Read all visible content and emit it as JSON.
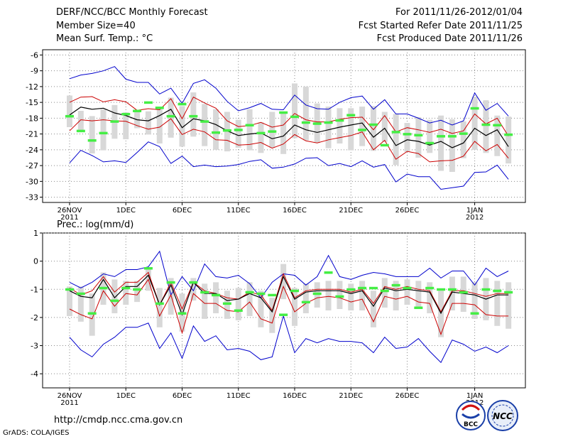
{
  "header": {
    "title": "DERF/NCC/BCC Monthly Forecast",
    "member_size": "Member Size=40",
    "variable_top": "Mean Surf. Temp.: °C",
    "forecast_range": "For 2011/11/26-2012/01/04",
    "started": "Fcst Started Refer Date 2011/11/25",
    "produced": "Fcst Produced Date 2011/11/26"
  },
  "footer": {
    "url": "http://cmdp.ncc.cma.gov.cn",
    "grads": "GrADS: COLA/IGES",
    "logo1_text": "BCC",
    "logo2_text": "NCC"
  },
  "colors": {
    "envelope": "#0000cc",
    "spread": "#cc0000",
    "mean": "#000000",
    "box": "#d8d8d8",
    "member_marker": "#44ee44"
  },
  "chart_data": [
    {
      "type": "line",
      "title": "Mean Surf. Temp.: °C",
      "ylim": [
        -34,
        -5
      ],
      "yticks": [
        -6,
        -9,
        -12,
        -15,
        -18,
        -21,
        -24,
        -27,
        -30,
        -33
      ],
      "xticks": [
        {
          "day": 0,
          "label": "26NOV",
          "label2": "2011"
        },
        {
          "day": 5,
          "label": "1DEC"
        },
        {
          "day": 10,
          "label": "6DEC"
        },
        {
          "day": 15,
          "label": "11DEC"
        },
        {
          "day": 20,
          "label": "16DEC"
        },
        {
          "day": 25,
          "label": "21DEC"
        },
        {
          "day": 30,
          "label": "26DEC"
        },
        {
          "day": 36,
          "label": "1JAN",
          "label2": "2012"
        }
      ],
      "series": [
        {
          "name": "max",
          "values": [
            -10.5,
            -9.8,
            -9.5,
            -9,
            -8.2,
            -10.6,
            -11.2,
            -11.2,
            -13.4,
            -12.3,
            -15.2,
            -11.4,
            -10.7,
            -12.3,
            -14.8,
            -16.6,
            -16,
            -15.2,
            -16.3,
            -16.4,
            -13.6,
            -15.5,
            -16.2,
            -16.3,
            -15,
            -14.1,
            -13.8,
            -16.3,
            -14.5,
            -17.2,
            -17.2,
            -18,
            -18.9,
            -18.4,
            -19.3,
            -18.5,
            -13.2,
            -16.5,
            -15.2,
            -17.6
          ]
        },
        {
          "name": "upper",
          "values": [
            -15,
            -14,
            -13.9,
            -14.9,
            -14.5,
            -14.9,
            -16.5,
            -16.2,
            -16.4,
            -14.3,
            -18.1,
            -14,
            -15.1,
            -16.1,
            -18.5,
            -19.6,
            -19.4,
            -18.8,
            -19.7,
            -19.3,
            -17.1,
            -18.3,
            -18.7,
            -18.7,
            -18.2,
            -17.9,
            -17.8,
            -20.2,
            -17.5,
            -20.6,
            -19.8,
            -20.2,
            -20.7,
            -20.1,
            -20.9,
            -20.4,
            -17.2,
            -19.1,
            -18,
            -21.4
          ]
        },
        {
          "name": "mean",
          "values": [
            -17.4,
            -15.9,
            -16.3,
            -16.1,
            -17,
            -17.5,
            -18.3,
            -18.5,
            -17.5,
            -16.3,
            -19.8,
            -18.1,
            -18.5,
            -19.2,
            -20.4,
            -21.3,
            -21,
            -20.8,
            -21.9,
            -21.4,
            -19.3,
            -20.2,
            -20.7,
            -20.2,
            -19.7,
            -19.3,
            -18.9,
            -21.6,
            -19.9,
            -23.2,
            -22.1,
            -22.4,
            -23.1,
            -22.4,
            -23.6,
            -22.7,
            -19.9,
            -21.3,
            -20.2,
            -23.4
          ]
        },
        {
          "name": "lower",
          "values": [
            -20.4,
            -18.3,
            -18.5,
            -18.3,
            -18.5,
            -18.6,
            -19.4,
            -20.1,
            -19.7,
            -18.1,
            -21.1,
            -20.1,
            -20.6,
            -22.1,
            -22.2,
            -23.1,
            -23,
            -22.6,
            -23.7,
            -22.9,
            -21.1,
            -22.3,
            -22.7,
            -22.1,
            -21.7,
            -21.3,
            -20.6,
            -24,
            -22.2,
            -25.8,
            -24.3,
            -24.7,
            -26.3,
            -26.1,
            -26,
            -25.2,
            -22.4,
            -24.2,
            -23,
            -25.6
          ]
        },
        {
          "name": "min",
          "values": [
            -26.5,
            -24.1,
            -25.1,
            -26.3,
            -26.1,
            -26.4,
            -24.5,
            -22.5,
            -23.4,
            -26.6,
            -25.2,
            -27.2,
            -26.9,
            -27.2,
            -27.1,
            -26.8,
            -26.2,
            -25.9,
            -27.5,
            -27.3,
            -26.7,
            -25.6,
            -25.5,
            -27,
            -26.6,
            -27.2,
            -26.1,
            -27.3,
            -26.8,
            -30.1,
            -28.6,
            -29.1,
            -29.1,
            -31.5,
            -31.2,
            -30.9,
            -28.3,
            -28.2,
            -26.9,
            -29.6
          ]
        }
      ],
      "boxes_high": [
        -13.7,
        -16.6,
        -17.6,
        -16.3,
        -15.5,
        -16.9,
        -16.5,
        -16.7,
        -16.1,
        -14.1,
        -15.7,
        -13.1,
        -15.3,
        -16.3,
        -16.8,
        -18.3,
        -16.3,
        -18.8,
        -16.8,
        -16.8,
        -11.4,
        -12,
        -15.2,
        -15.8,
        -16.1,
        -16.1,
        -15.8,
        -15.7,
        -16.8,
        -17.2,
        -18.9,
        -17.8,
        -18.3,
        -17.5,
        -18.2,
        -18.6,
        -13.9,
        -14.6,
        -17.5,
        -17.7
      ],
      "boxes_low": [
        -19.7,
        -20.5,
        -24.7,
        -24.1,
        -21.9,
        -22,
        -19.9,
        -21.1,
        -22.8,
        -21.7,
        -23.4,
        -21.5,
        -23.3,
        -24,
        -24.3,
        -23.6,
        -24.1,
        -24.6,
        -23.6,
        -24.8,
        -21.8,
        -22.2,
        -22.7,
        -23.7,
        -22.8,
        -24.1,
        -23.3,
        -24.2,
        -22.5,
        -26.9,
        -24.4,
        -25.5,
        -24.6,
        -28,
        -28.2,
        -25.6,
        -24,
        -24.6,
        -25.2,
        -26.6
      ],
      "markers": [
        -17.6,
        -20.4,
        -22.2,
        -20.8,
        -18.6,
        -17.2,
        -16.6,
        -15,
        -16,
        -17.6,
        -15.3,
        -17.6,
        -18.6,
        -20.7,
        -20.3,
        -20.2,
        -19.3,
        -20.8,
        -20.5,
        -16.9,
        -17.7,
        -18.8,
        -19,
        -18.8,
        -18.4,
        -17.4,
        -20.2,
        -19.2,
        -23.1,
        -20.6,
        -21,
        -21.2,
        -22.7,
        -21.4,
        -21.4,
        -20.9,
        -16.1,
        -19.2,
        -19.3,
        -21.1
      ]
    },
    {
      "type": "line",
      "title": "Prec.: log(mm/d)",
      "ylim": [
        -4.5,
        1
      ],
      "yticks": [
        1,
        0,
        -1,
        -2,
        -3,
        -4
      ],
      "xticks": [
        {
          "day": 0,
          "label": "26NOV",
          "label2": "2011"
        },
        {
          "day": 5,
          "label": "1DEC"
        },
        {
          "day": 10,
          "label": "6DEC"
        },
        {
          "day": 15,
          "label": "11DEC"
        },
        {
          "day": 20,
          "label": "16DEC"
        },
        {
          "day": 25,
          "label": "21DEC"
        },
        {
          "day": 30,
          "label": "26DEC"
        },
        {
          "day": 36,
          "label": "1JAN",
          "label2": "2012"
        }
      ],
      "series": [
        {
          "name": "max",
          "values": [
            -0.75,
            -0.95,
            -0.75,
            -0.45,
            -0.55,
            -0.3,
            -0.3,
            -0.2,
            0.35,
            -1.2,
            -0.55,
            -1.05,
            -0.1,
            -0.55,
            -0.6,
            -0.5,
            -0.8,
            -1.3,
            -0.75,
            -0.45,
            -0.5,
            -0.85,
            -0.55,
            0.2,
            -0.55,
            -0.65,
            -0.5,
            -0.4,
            -0.45,
            -0.55,
            -0.55,
            -0.55,
            -0.25,
            -0.6,
            -0.35,
            -0.35,
            -0.85,
            -0.25,
            -0.55,
            -0.35
          ]
        },
        {
          "name": "upper",
          "values": [
            -0.95,
            -1.2,
            -1.05,
            -0.55,
            -1.1,
            -0.75,
            -0.75,
            -0.4,
            -1.55,
            -0.75,
            -1.7,
            -0.75,
            -1.05,
            -1.15,
            -1.3,
            -1.35,
            -1.1,
            -1.2,
            -1.75,
            -0.45,
            -1.3,
            -1.05,
            -1,
            -1,
            -1,
            -1.1,
            -1,
            -1.5,
            -0.9,
            -1,
            -0.9,
            -1,
            -1.05,
            -1.8,
            -1.05,
            -1.05,
            -1.15,
            -1.25,
            -1.15,
            -1.15
          ]
        },
        {
          "name": "mean",
          "values": [
            -1.05,
            -1.25,
            -1.3,
            -0.65,
            -1.3,
            -0.9,
            -0.9,
            -0.5,
            -1.55,
            -0.85,
            -1.9,
            -0.75,
            -1.15,
            -1.15,
            -1.4,
            -1.35,
            -1.15,
            -1.3,
            -1.8,
            -0.55,
            -1.35,
            -1.1,
            -1.05,
            -1.05,
            -1.05,
            -1.15,
            -1.05,
            -1.6,
            -0.95,
            -1.05,
            -1,
            -1.05,
            -1.1,
            -1.85,
            -1.1,
            -1.15,
            -1.2,
            -1.35,
            -1.2,
            -1.2
          ]
        },
        {
          "name": "lower",
          "values": [
            -1.7,
            -1.9,
            -2.05,
            -1.05,
            -1.6,
            -1.15,
            -1.2,
            -0.65,
            -1.95,
            -1.2,
            -2.55,
            -1.15,
            -1.5,
            -1.5,
            -1.75,
            -1.8,
            -1.45,
            -2.05,
            -2.2,
            -0.9,
            -1.8,
            -1.5,
            -1.3,
            -1.25,
            -1.3,
            -1.45,
            -1.35,
            -2.15,
            -1.25,
            -1.35,
            -1.25,
            -1.45,
            -1.5,
            -2.6,
            -1.5,
            -1.5,
            -1.55,
            -1.9,
            -1.95,
            -1.95
          ]
        },
        {
          "name": "min",
          "values": [
            -2.7,
            -3.15,
            -3.4,
            -2.95,
            -2.7,
            -2.35,
            -2.35,
            -2.2,
            -3.1,
            -2.55,
            -3.45,
            -2.3,
            -2.85,
            -2.65,
            -3.15,
            -3.1,
            -3.2,
            -3.5,
            -3.4,
            -1.95,
            -3.25,
            -2.75,
            -2.9,
            -2.75,
            -2.85,
            -2.85,
            -2.9,
            -3.25,
            -2.7,
            -3.1,
            -3.05,
            -2.75,
            -3.2,
            -3.6,
            -2.8,
            -2.95,
            -3.2,
            -3.05,
            -3.25,
            -3
          ]
        },
        {
          "name": "lower2",
          "values": []
        }
      ],
      "boxes_high": [
        -0.9,
        -0.9,
        -1.15,
        -0.4,
        -0.65,
        -0.7,
        -0.7,
        -0.3,
        -0.95,
        -0.6,
        -1.15,
        -0.6,
        -0.8,
        -0.75,
        -1.05,
        -0.95,
        -0.75,
        -1.05,
        -1.3,
        -0.1,
        -0.95,
        -0.8,
        -0.75,
        -0.7,
        -0.7,
        -0.8,
        -0.7,
        -1.05,
        -0.6,
        -0.7,
        -0.65,
        -0.7,
        -0.75,
        -1.05,
        -0.55,
        -0.55,
        -0.75,
        -0.6,
        -0.7,
        -0.75
      ],
      "boxes_low": [
        -1.95,
        -2.15,
        -2.65,
        -1.55,
        -1.85,
        -1.55,
        -1.45,
        -1.05,
        -2.35,
        -1.9,
        -2.5,
        -1.4,
        -2.05,
        -1.85,
        -2.05,
        -2.1,
        -1.95,
        -2.35,
        -2.55,
        -1.35,
        -2.3,
        -1.85,
        -1.65,
        -1.75,
        -1.7,
        -1.75,
        -1.75,
        -2.35,
        -1.65,
        -1.75,
        -1.55,
        -1.7,
        -1.85,
        -2.7,
        -1.75,
        -1.8,
        -2.05,
        -2.1,
        -2.3,
        -2.4
      ],
      "markers": [
        -1,
        -1.15,
        -1.85,
        -0.95,
        -1.4,
        -0.95,
        -1,
        -0.25,
        -1.5,
        -0.75,
        -1.85,
        -0.75,
        -1.1,
        -1.2,
        -1.5,
        -1.75,
        -1.1,
        -1.15,
        -1.2,
        -1.9,
        -1.05,
        -1.45,
        -1.15,
        -0.4,
        -1.25,
        -1,
        -0.95,
        -0.95,
        -1.05,
        -0.85,
        -0.95,
        -1.65,
        -0.95,
        -1,
        -1,
        -1.1,
        -1.85,
        -1,
        -1.05,
        -1.1
      ]
    }
  ]
}
